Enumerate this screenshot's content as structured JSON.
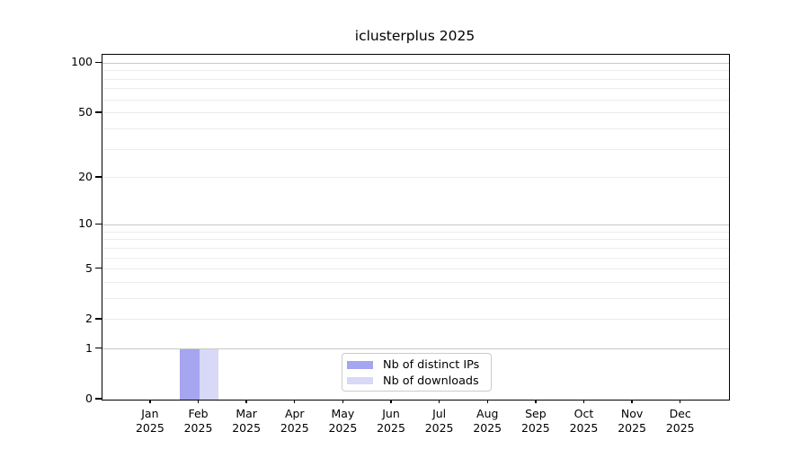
{
  "chart_data": {
    "type": "bar",
    "title": "iclusterplus 2025",
    "categories": [
      "Jan",
      "Feb",
      "Mar",
      "Apr",
      "May",
      "Jun",
      "Jul",
      "Aug",
      "Sep",
      "Oct",
      "Nov",
      "Dec"
    ],
    "x_year_label": "2025",
    "series": [
      {
        "name": "Nb of distinct IPs",
        "color": "#a5a5f0",
        "values": [
          0,
          1,
          0,
          0,
          0,
          0,
          0,
          0,
          0,
          0,
          0,
          0
        ]
      },
      {
        "name": "Nb of downloads",
        "color": "#d8d8f7",
        "values": [
          0,
          1,
          0,
          0,
          0,
          0,
          0,
          0,
          0,
          0,
          0,
          0
        ]
      }
    ],
    "xlabel": "",
    "ylabel": "",
    "y_scale": "log10(1+x)",
    "ylim": [
      0,
      112
    ],
    "y_tick_values": [
      0,
      1,
      2,
      5,
      10,
      20,
      50,
      100
    ],
    "y_major_gridlines": [
      1,
      10,
      100
    ],
    "y_minor_gridlines": [
      2,
      3,
      4,
      5,
      6,
      7,
      8,
      9,
      20,
      30,
      40,
      50,
      60,
      70,
      80,
      90
    ],
    "grid": true,
    "legend_position": "bottom-center",
    "colors": {
      "frame": "#000000",
      "major_grid": "#c8c8c8",
      "minor_grid": "#ececec",
      "background": "#ffffff",
      "text": "#000000"
    }
  }
}
